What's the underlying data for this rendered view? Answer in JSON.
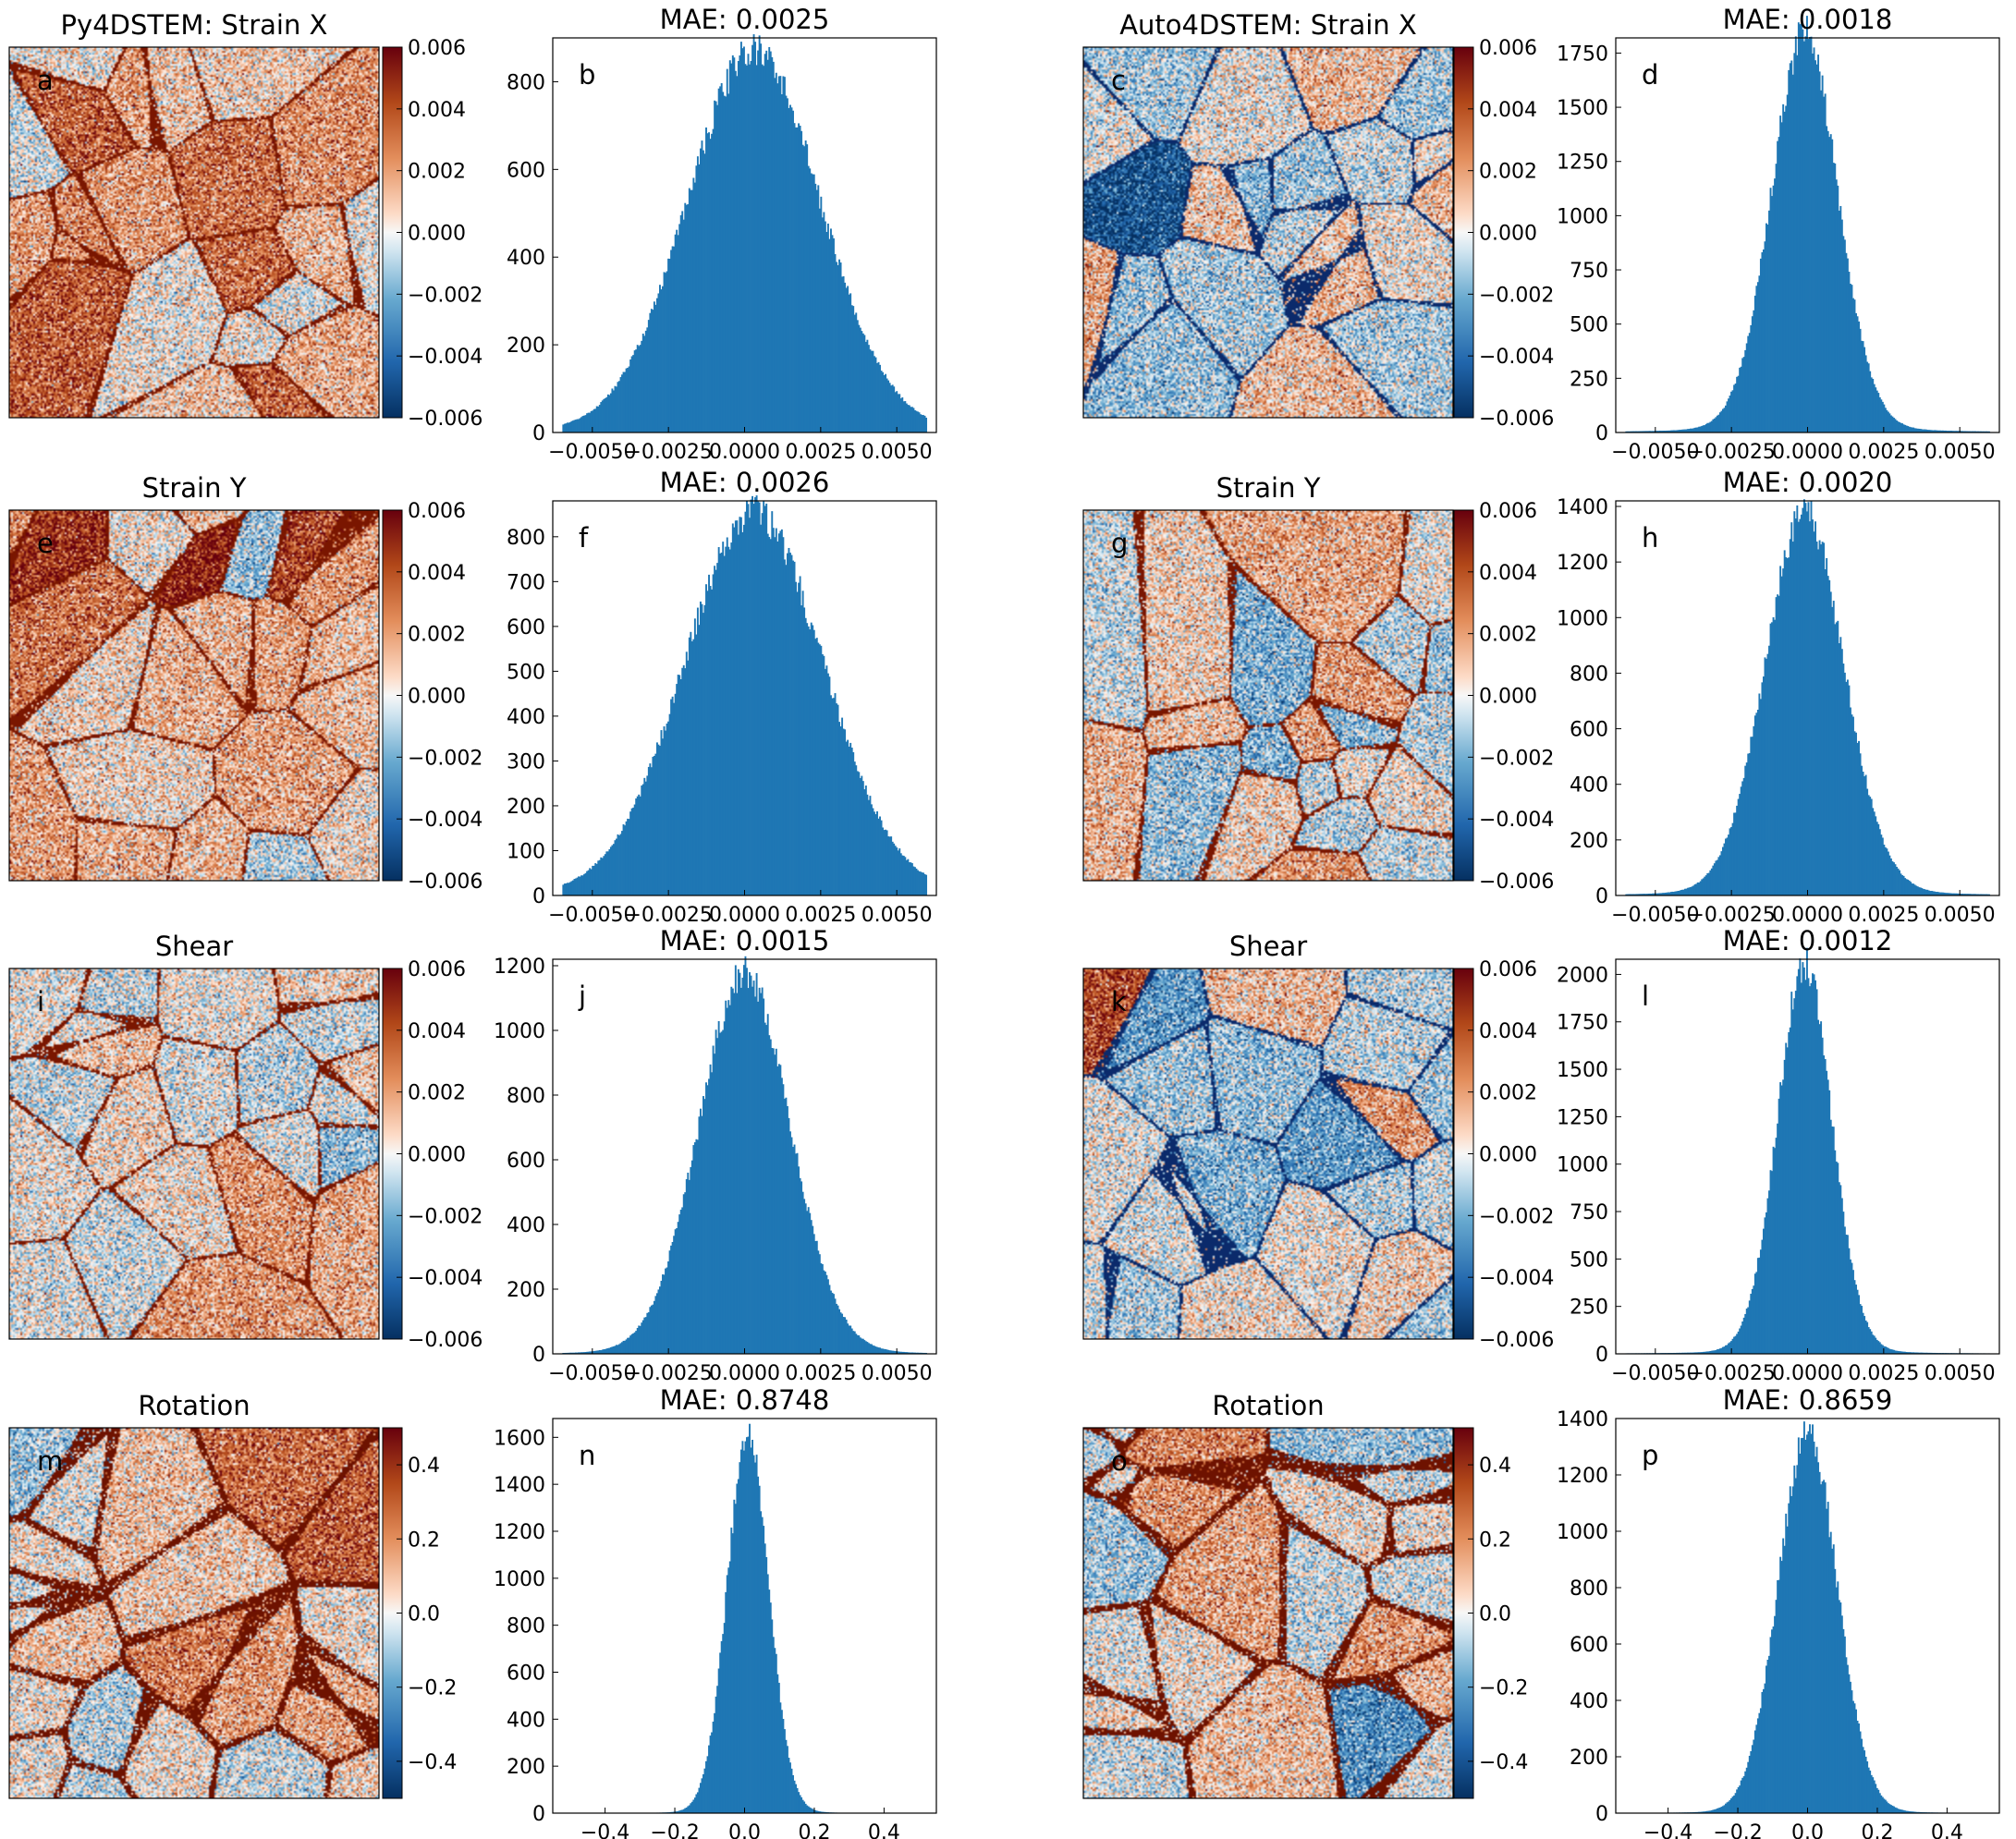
{
  "chart_data": [
    {
      "type": "heatmap",
      "panel": "a",
      "title": "Py4DSTEM: Strain X",
      "colorbar_ticks": [
        "0.006",
        "0.004",
        "0.002",
        "0.000",
        "−0.002",
        "−0.004",
        "−0.006"
      ],
      "colorbar_range": [
        -0.006,
        0.006
      ],
      "colormap": "blue-white-orange",
      "bias": 0.28,
      "boundary_color": "#7a1600"
    },
    {
      "type": "bar",
      "panel": "b",
      "title": "MAE: 0.0025",
      "x_ticks": [
        "−0.0050",
        "−0.0025",
        "0.0000",
        "0.0025",
        "0.0050"
      ],
      "x_tick_values": [
        -0.005,
        -0.0025,
        0,
        0.0025,
        0.005
      ],
      "xlim": [
        -0.0063,
        0.0063
      ],
      "y_ticks": [
        "0",
        "200",
        "400",
        "600",
        "800"
      ],
      "y_tick_values": [
        0,
        200,
        400,
        600,
        800
      ],
      "ylim": [
        0,
        900
      ],
      "peak": 845,
      "center": 0.0003,
      "width": 0.0022,
      "tail": 0.015
    },
    {
      "type": "heatmap",
      "panel": "c",
      "title": "Auto4DSTEM: Strain X",
      "colorbar_ticks": [
        "0.006",
        "0.004",
        "0.002",
        "0.000",
        "−0.002",
        "−0.004",
        "−0.006"
      ],
      "colorbar_range": [
        -0.006,
        0.006
      ],
      "colormap": "blue-white-orange",
      "bias": 0,
      "boundary_color": "#0b2a6b"
    },
    {
      "type": "bar",
      "panel": "d",
      "title": "MAE: 0.0018",
      "x_ticks": [
        "−0.0050",
        "−0.0025",
        "0.0000",
        "0.0025",
        "0.0050"
      ],
      "x_tick_values": [
        -0.005,
        -0.0025,
        0,
        0.0025,
        0.005
      ],
      "xlim": [
        -0.0063,
        0.0063
      ],
      "y_ticks": [
        "0",
        "250",
        "500",
        "750",
        "1000",
        "1250",
        "1500",
        "1750"
      ],
      "y_tick_values": [
        0,
        250,
        500,
        750,
        1000,
        1250,
        1500,
        1750
      ],
      "ylim": [
        0,
        1820
      ],
      "peak": 1740,
      "center": -0.0001,
      "width": 0.0011,
      "tail": 0.03
    },
    {
      "type": "heatmap",
      "panel": "e",
      "title": "Strain Y",
      "colorbar_ticks": [
        "0.006",
        "0.004",
        "0.002",
        "0.000",
        "−0.002",
        "−0.004",
        "−0.006"
      ],
      "colorbar_range": [
        -0.006,
        0.006
      ],
      "colormap": "blue-white-orange",
      "bias": 0.25,
      "boundary_color": "#7a1600"
    },
    {
      "type": "bar",
      "panel": "f",
      "title": "MAE: 0.0026",
      "x_ticks": [
        "−0.0050",
        "−0.0025",
        "0.0000",
        "0.0025",
        "0.0050"
      ],
      "x_tick_values": [
        -0.005,
        -0.0025,
        0,
        0.0025,
        0.005
      ],
      "xlim": [
        -0.0063,
        0.0063
      ],
      "y_ticks": [
        "0",
        "100",
        "200",
        "300",
        "400",
        "500",
        "600",
        "700",
        "800"
      ],
      "y_tick_values": [
        0,
        100,
        200,
        300,
        400,
        500,
        600,
        700,
        800
      ],
      "ylim": [
        0,
        880
      ],
      "peak": 830,
      "center": 0.0003,
      "width": 0.0023,
      "tail": 0.015
    },
    {
      "type": "heatmap",
      "panel": "g",
      "title": "Strain Y",
      "colorbar_ticks": [
        "0.006",
        "0.004",
        "0.002",
        "0.000",
        "−0.002",
        "−0.004",
        "−0.006"
      ],
      "colorbar_range": [
        -0.006,
        0.006
      ],
      "colormap": "blue-white-orange",
      "bias": -0.05,
      "boundary_color": "#7a1600"
    },
    {
      "type": "bar",
      "panel": "h",
      "title": "MAE: 0.0020",
      "x_ticks": [
        "−0.0050",
        "−0.0025",
        "0.0000",
        "0.0025",
        "0.0050"
      ],
      "x_tick_values": [
        -0.005,
        -0.0025,
        0,
        0.0025,
        0.005
      ],
      "xlim": [
        -0.0063,
        0.0063
      ],
      "y_ticks": [
        "0",
        "200",
        "400",
        "600",
        "800",
        "1000",
        "1200",
        "1400"
      ],
      "y_tick_values": [
        0,
        200,
        400,
        600,
        800,
        1000,
        1200,
        1400
      ],
      "ylim": [
        0,
        1420
      ],
      "peak": 1320,
      "center": -0.0001,
      "width": 0.0013,
      "tail": 0.025
    },
    {
      "type": "heatmap",
      "panel": "i",
      "title": "Shear",
      "colorbar_ticks": [
        "0.006",
        "0.004",
        "0.002",
        "0.000",
        "−0.002",
        "−0.004",
        "−0.006"
      ],
      "colorbar_range": [
        -0.006,
        0.006
      ],
      "colormap": "blue-white-orange",
      "bias": 0.05,
      "boundary_color": "#7a1600"
    },
    {
      "type": "bar",
      "panel": "j",
      "title": "MAE: 0.0015",
      "x_ticks": [
        "−0.0050",
        "−0.0025",
        "0.0000",
        "0.0025",
        "0.0050"
      ],
      "x_tick_values": [
        -0.005,
        -0.0025,
        0,
        0.0025,
        0.005
      ],
      "xlim": [
        -0.0063,
        0.0063
      ],
      "y_ticks": [
        "0",
        "200",
        "400",
        "600",
        "800",
        "1000",
        "1200"
      ],
      "y_tick_values": [
        0,
        200,
        400,
        600,
        800,
        1000,
        1200
      ],
      "ylim": [
        0,
        1220
      ],
      "peak": 1150,
      "center": 0.0,
      "width": 0.0015,
      "tail": 0.012
    },
    {
      "type": "heatmap",
      "panel": "k",
      "title": "Shear",
      "colorbar_ticks": [
        "0.006",
        "0.004",
        "0.002",
        "0.000",
        "−0.002",
        "−0.004",
        "−0.006"
      ],
      "colorbar_range": [
        -0.006,
        0.006
      ],
      "colormap": "blue-white-orange",
      "bias": -0.05,
      "boundary_color": "#0b2a6b"
    },
    {
      "type": "bar",
      "panel": "l",
      "title": "MAE: 0.0012",
      "x_ticks": [
        "−0.0050",
        "−0.0025",
        "0.0000",
        "0.0025",
        "0.0050"
      ],
      "x_tick_values": [
        -0.005,
        -0.0025,
        0,
        0.0025,
        0.005
      ],
      "xlim": [
        -0.0063,
        0.0063
      ],
      "y_ticks": [
        "0",
        "250",
        "500",
        "750",
        "1000",
        "1250",
        "1500",
        "1750",
        "2000"
      ],
      "y_tick_values": [
        0,
        250,
        500,
        750,
        1000,
        1250,
        1500,
        1750,
        2000
      ],
      "ylim": [
        0,
        2080
      ],
      "peak": 1980,
      "center": -0.0001,
      "width": 0.0009,
      "tail": 0.02
    },
    {
      "type": "heatmap",
      "panel": "m",
      "title": "Rotation",
      "colorbar_ticks": [
        "0.4",
        "0.2",
        "0.0",
        "−0.2",
        "−0.4"
      ],
      "colorbar_range": [
        -0.5,
        0.5
      ],
      "colormap": "blue-white-orange",
      "bias": 0.15,
      "boundary_color": "#6e1200"
    },
    {
      "type": "bar",
      "panel": "n",
      "title": "MAE: 0.8748",
      "x_ticks": [
        "−0.4",
        "−0.2",
        "0.0",
        "0.2",
        "0.4"
      ],
      "x_tick_values": [
        -0.4,
        -0.2,
        0,
        0.2,
        0.4
      ],
      "xlim": [
        -0.55,
        0.55
      ],
      "y_ticks": [
        "0",
        "200",
        "400",
        "600",
        "800",
        "1000",
        "1200",
        "1400",
        "1600"
      ],
      "y_tick_values": [
        0,
        200,
        400,
        600,
        800,
        1000,
        1200,
        1400,
        1600
      ],
      "ylim": [
        0,
        1680
      ],
      "peak": 1590,
      "center": 0.01,
      "width": 0.06,
      "tail": 0.008
    },
    {
      "type": "heatmap",
      "panel": "o",
      "title": "Rotation",
      "colorbar_ticks": [
        "0.4",
        "0.2",
        "0.0",
        "−0.2",
        "−0.4"
      ],
      "colorbar_range": [
        -0.5,
        0.5
      ],
      "colormap": "blue-white-orange",
      "bias": 0.05,
      "boundary_color": "#6e1200"
    },
    {
      "type": "bar",
      "panel": "p",
      "title": "MAE: 0.8659",
      "x_ticks": [
        "−0.4",
        "−0.2",
        "0.0",
        "0.2",
        "0.4"
      ],
      "x_tick_values": [
        -0.4,
        -0.2,
        0,
        0.2,
        0.4
      ],
      "xlim": [
        -0.55,
        0.55
      ],
      "y_ticks": [
        "0",
        "200",
        "400",
        "600",
        "800",
        "1000",
        "1200",
        "1400"
      ],
      "y_tick_values": [
        0,
        200,
        400,
        600,
        800,
        1000,
        1200,
        1400
      ],
      "ylim": [
        0,
        1400
      ],
      "peak": 1320,
      "center": 0.0,
      "width": 0.085,
      "tail": 0.01
    }
  ]
}
